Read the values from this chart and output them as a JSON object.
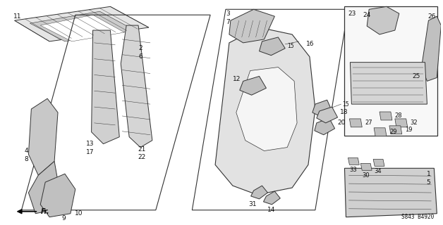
{
  "bg_color": "#ffffff",
  "diagram_code": "S843 B4920",
  "fr_label": "Fr.",
  "line_color": "#333333",
  "text_color": "#111111",
  "font_size": 7.0
}
